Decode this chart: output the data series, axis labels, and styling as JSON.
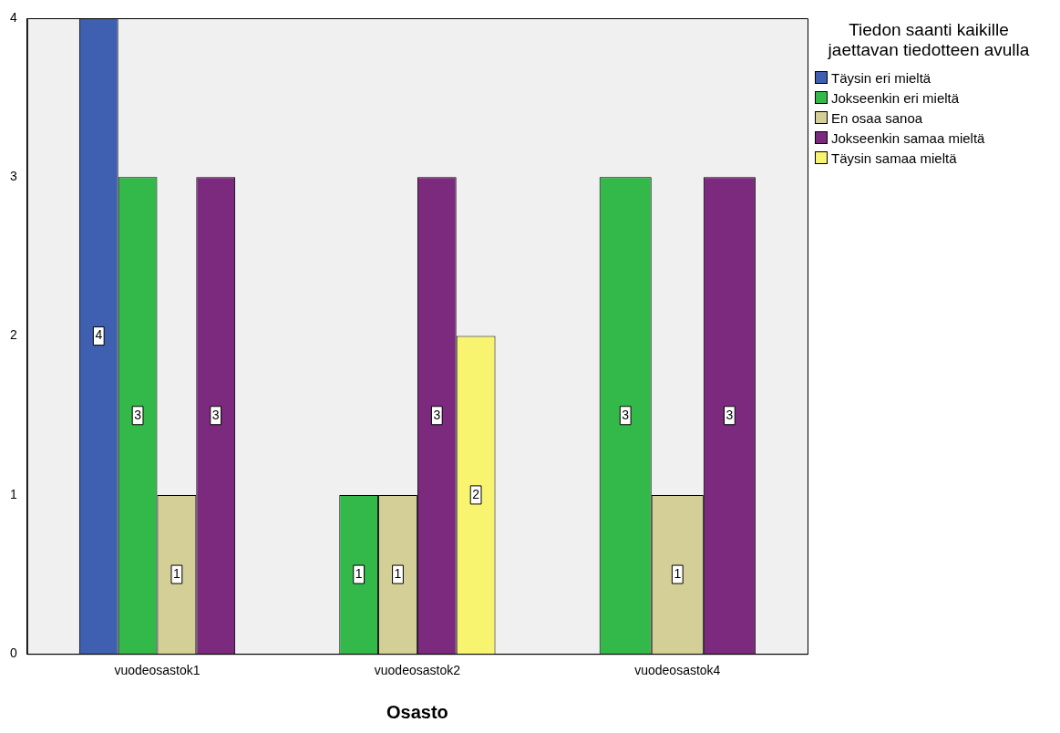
{
  "chart_data": {
    "type": "bar",
    "xlabel": "Osasto",
    "legend_title": "Tiedon saanti kaikille jaettavan tiedotteen avulla",
    "categories": [
      "vuodeosastok1",
      "vuodeosastok2",
      "vuodeosastok4"
    ],
    "series": [
      {
        "name": "Täysin eri mieltä",
        "color": "#3f5fb0",
        "values": [
          4,
          null,
          null
        ]
      },
      {
        "name": "Jokseenkin eri mieltä",
        "color": "#33b84a",
        "values": [
          3,
          1,
          3
        ]
      },
      {
        "name": "En osaa sanoa",
        "color": "#d4cf97",
        "values": [
          1,
          1,
          1
        ]
      },
      {
        "name": "Jokseenkin samaa mieltä",
        "color": "#7b2a7e",
        "values": [
          3,
          3,
          3
        ]
      },
      {
        "name": "Täysin samaa mieltä",
        "color": "#f8f46f",
        "values": [
          null,
          2,
          null
        ]
      }
    ],
    "ylim": [
      0,
      4
    ],
    "yticks": [
      0,
      1,
      2,
      3,
      4
    ],
    "grid": false,
    "legend": "top right",
    "data_labels": true
  }
}
